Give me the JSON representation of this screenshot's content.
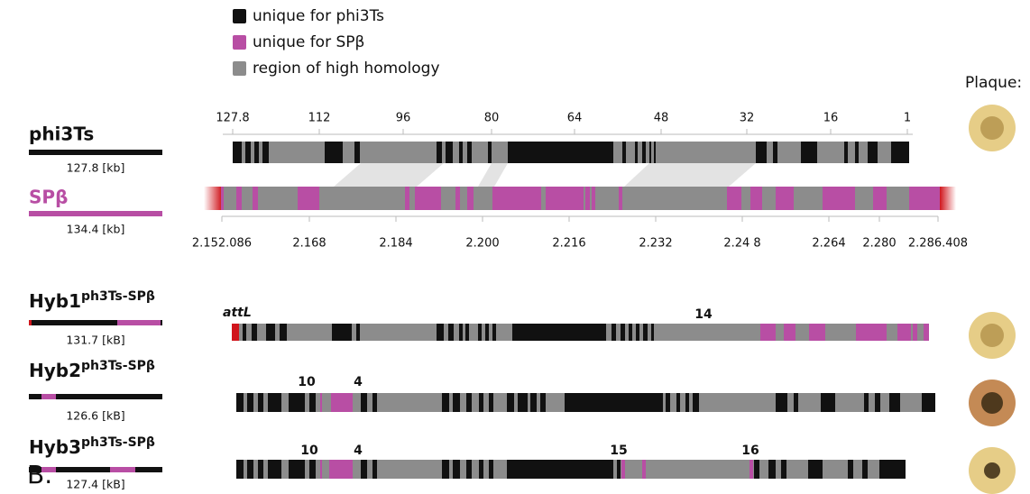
{
  "legend": [
    {
      "label": "unique for phi3Ts",
      "color": "#111111"
    },
    {
      "label": "unique for SPβ",
      "color": "#b84ea4"
    },
    {
      "label": "region of high homology",
      "color": "#8c8c8c"
    }
  ],
  "plaque_label": "Plaque:",
  "genomes": [
    {
      "name": "phi3Ts",
      "size": "127.8 [kb]"
    },
    {
      "name": "SPβ",
      "size": "134.4 [kb]"
    }
  ],
  "top_scale": [
    "127.8",
    "112",
    "96",
    "80",
    "64",
    "48",
    "32",
    "16",
    "1"
  ],
  "bottom_scale": [
    "2.152.086",
    "2.168",
    "2.184",
    "2.200",
    "2.216",
    "2.232",
    "2.24 8",
    "2.264",
    "2.280",
    "2.286.408"
  ],
  "hybrids": [
    {
      "name": "Hyb1",
      "superscript": "ph3Ts-SPβ",
      "size": "131.7 [kB]",
      "annotations": [
        "attL",
        "14"
      ]
    },
    {
      "name": "Hyb2",
      "superscript": "ph3Ts-SPβ",
      "size": "126.6 [kB]",
      "annotations": [
        "10",
        "4"
      ]
    },
    {
      "name": "Hyb3",
      "superscript": "ph3Ts-SPβ",
      "size": "127.4 [kB]",
      "annotations": [
        "10",
        "4",
        "15",
        "16"
      ]
    }
  ],
  "panel_label": "B."
}
